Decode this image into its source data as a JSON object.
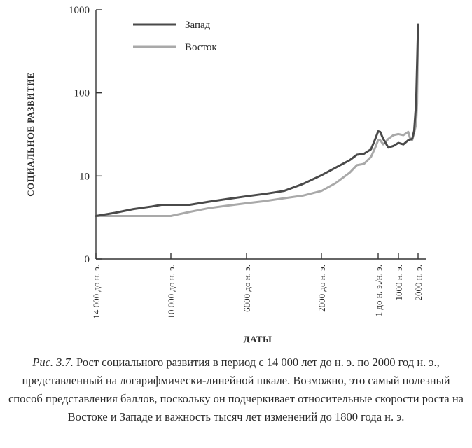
{
  "chart_data": {
    "type": "line",
    "yscale": "log",
    "ylabel": "СОЦИАЛЬНОЕ РАЗВИТИЕ",
    "xlabel": "ДАТЫ",
    "yticks": [
      {
        "label": "1000",
        "value": 1000
      },
      {
        "label": "100",
        "value": 100
      },
      {
        "label": "10",
        "value": 10
      },
      {
        "label": "0",
        "value": 1
      }
    ],
    "xticks": [
      {
        "label": "14 000 до н. э.",
        "year": -14000
      },
      {
        "label": "10 000 до н. э.",
        "year": -10000
      },
      {
        "label": "6000 до н. э.",
        "year": -6000
      },
      {
        "label": "2000 до н. э.",
        "year": -2000
      },
      {
        "label": "1 до н. э./н. э.",
        "year": 1
      },
      {
        "label": "1000 н. э.",
        "year": 1000
      },
      {
        "label": "2000 н. э.",
        "year": 2000
      }
    ],
    "series": [
      {
        "name": "Запад",
        "color": "#4a4a4a",
        "points": [
          [
            -14000,
            3.3
          ],
          [
            -13000,
            3.6
          ],
          [
            -12000,
            4.0
          ],
          [
            -11000,
            4.3
          ],
          [
            -10500,
            4.5
          ],
          [
            -10000,
            4.5
          ],
          [
            -9000,
            4.5
          ],
          [
            -8000,
            4.9
          ],
          [
            -7000,
            5.3
          ],
          [
            -6000,
            5.7
          ],
          [
            -5000,
            6.1
          ],
          [
            -4000,
            6.6
          ],
          [
            -3000,
            8.0
          ],
          [
            -2000,
            10.2
          ],
          [
            -1500,
            12.6
          ],
          [
            -1000,
            15.5
          ],
          [
            -750,
            18.0
          ],
          [
            -500,
            18.5
          ],
          [
            -250,
            21.0
          ],
          [
            -100,
            28.0
          ],
          [
            1,
            34.5
          ],
          [
            100,
            34.0
          ],
          [
            250,
            28.0
          ],
          [
            500,
            22.0
          ],
          [
            750,
            23.0
          ],
          [
            1000,
            25.0
          ],
          [
            1250,
            24.0
          ],
          [
            1500,
            27.0
          ],
          [
            1700,
            28.0
          ],
          [
            1800,
            35.0
          ],
          [
            1900,
            75.0
          ],
          [
            1950,
            220.0
          ],
          [
            2000,
            665.0
          ]
        ]
      },
      {
        "name": "Восток",
        "color": "#a9a9a9",
        "points": [
          [
            -14000,
            3.3
          ],
          [
            -13000,
            3.3
          ],
          [
            -12000,
            3.3
          ],
          [
            -11000,
            3.3
          ],
          [
            -10000,
            3.3
          ],
          [
            -9000,
            3.7
          ],
          [
            -8000,
            4.1
          ],
          [
            -7000,
            4.4
          ],
          [
            -6000,
            4.7
          ],
          [
            -5000,
            5.0
          ],
          [
            -4000,
            5.4
          ],
          [
            -3000,
            5.8
          ],
          [
            -2000,
            6.6
          ],
          [
            -1500,
            8.2
          ],
          [
            -1000,
            11.0
          ],
          [
            -750,
            13.5
          ],
          [
            -500,
            14.0
          ],
          [
            -250,
            17.0
          ],
          [
            -100,
            22.0
          ],
          [
            1,
            27.0
          ],
          [
            100,
            27.0
          ],
          [
            250,
            24.0
          ],
          [
            500,
            28.0
          ],
          [
            750,
            31.0
          ],
          [
            1000,
            32.0
          ],
          [
            1250,
            31.0
          ],
          [
            1500,
            34.0
          ],
          [
            1600,
            28.0
          ],
          [
            1700,
            27.0
          ],
          [
            1800,
            33.0
          ],
          [
            1900,
            42.0
          ],
          [
            1950,
            75.0
          ],
          [
            2000,
            565.0
          ]
        ]
      }
    ]
  },
  "caption": {
    "fig_label": "Рис. 3.7.",
    "text": "Рост социального развития в период с 14 000 лет до н. э. по 2000 год н. э., представленный на логарифмически-линейной шкале. Возможно, это самый полезный способ представления баллов, поскольку он подчеркивает относительные скорости роста на Востоке и Западе и важность тысяч лет изменений до 1800 года н. э."
  }
}
